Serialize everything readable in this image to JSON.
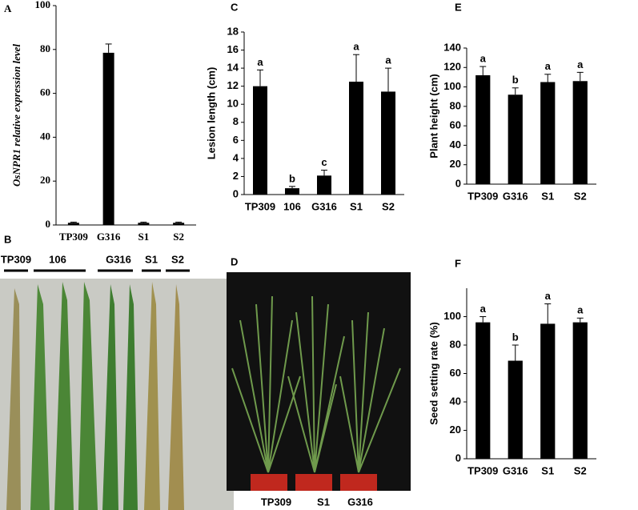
{
  "chart_data": [
    {
      "type": "bar",
      "panel": "A",
      "y_label": "OsNPR1 relative expression level",
      "categories": [
        "TP309",
        "G316",
        "S1",
        "S2"
      ],
      "values": [
        1,
        78.5,
        1,
        1
      ],
      "errors": [
        0.3,
        4,
        0.3,
        0.3
      ],
      "color": "#000000",
      "ylim": [
        0,
        100
      ],
      "yticks": [
        0,
        20,
        40,
        60,
        80,
        100
      ],
      "grid": false
    },
    {
      "type": "bar",
      "panel": "C",
      "y_label": "Lesion length (cm)",
      "categories": [
        "TP309",
        "106",
        "G316",
        "S1",
        "S2"
      ],
      "values": [
        12,
        0.7,
        2.1,
        12.5,
        11.4
      ],
      "errors": [
        1.8,
        0.2,
        0.6,
        3,
        2.6
      ],
      "sig_labels": [
        "a",
        "b",
        "c",
        "a",
        "a"
      ],
      "color": "#000000",
      "ylim": [
        0,
        18
      ],
      "yticks": [
        0,
        2,
        4,
        6,
        8,
        10,
        12,
        14,
        16,
        18
      ],
      "grid": false
    },
    {
      "type": "bar",
      "panel": "E",
      "y_label": "Plant height (cm)",
      "categories": [
        "TP309",
        "G316",
        "S1",
        "S2"
      ],
      "values": [
        112,
        92,
        105,
        106
      ],
      "errors": [
        9,
        7,
        8,
        9
      ],
      "sig_labels": [
        "a",
        "b",
        "a",
        "a"
      ],
      "color": "#000000",
      "ylim": [
        0,
        140
      ],
      "yticks": [
        0,
        20,
        40,
        60,
        80,
        100,
        120,
        140
      ],
      "grid": false
    },
    {
      "type": "bar",
      "panel": "F",
      "y_label": "Seed setting rate (%)",
      "categories": [
        "TP309",
        "G316",
        "S1",
        "S2"
      ],
      "values": [
        96,
        69,
        95,
        96
      ],
      "errors": [
        4,
        11,
        14,
        3
      ],
      "sig_labels": [
        "a",
        "b",
        "a",
        "a"
      ],
      "color": "#000000",
      "ylim": [
        0,
        120
      ],
      "yticks": [
        0,
        20,
        40,
        60,
        80,
        100
      ],
      "grid": false
    }
  ],
  "photos": [
    {
      "panel": "B",
      "labels": [
        "TP309",
        "106",
        "G316",
        "S1",
        "S2"
      ]
    },
    {
      "panel": "D",
      "labels": [
        "TP309",
        "S1",
        "G316"
      ]
    }
  ]
}
